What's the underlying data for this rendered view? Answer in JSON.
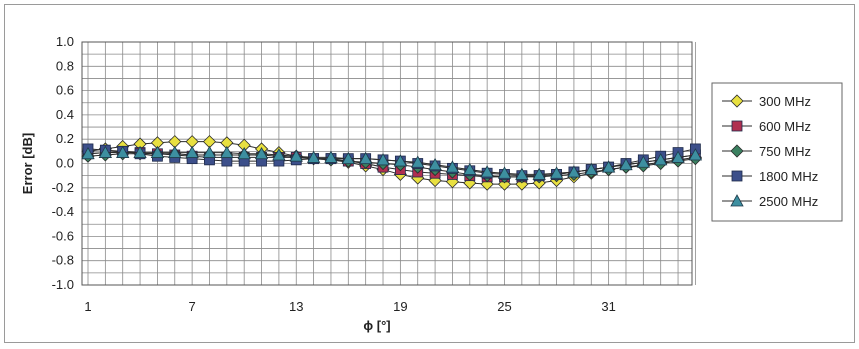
{
  "chart_data": {
    "type": "line",
    "xlabel": "ϕ [°]",
    "ylabel": "Error [dB]",
    "xlim": [
      1,
      36
    ],
    "ylim": [
      -1.0,
      1.0
    ],
    "x_ticks": [
      "1",
      "7",
      "13",
      "19",
      "25",
      "31"
    ],
    "y_ticks": [
      "1.0",
      "0.8",
      "0.6",
      "0.4",
      "0.2",
      "0.0",
      "-0.2",
      "-0.4",
      "-0.6",
      "-0.8",
      "-1.0"
    ],
    "grid": true,
    "legend_position": "right",
    "x": [
      1,
      2,
      3,
      4,
      5,
      6,
      7,
      8,
      9,
      10,
      11,
      12,
      13,
      14,
      15,
      16,
      17,
      18,
      19,
      20,
      21,
      22,
      23,
      24,
      25,
      26,
      27,
      28,
      29,
      30,
      31,
      32,
      33,
      34,
      35,
      36
    ],
    "series": [
      {
        "name": "300 MHz",
        "color": "#e8e040",
        "marker": "diamond",
        "values": [
          0.1,
          0.12,
          0.14,
          0.16,
          0.17,
          0.18,
          0.18,
          0.18,
          0.17,
          0.15,
          0.12,
          0.09,
          0.06,
          0.04,
          0.03,
          0.01,
          -0.02,
          -0.05,
          -0.09,
          -0.12,
          -0.14,
          -0.15,
          -0.16,
          -0.17,
          -0.17,
          -0.17,
          -0.16,
          -0.14,
          -0.11,
          -0.08,
          -0.05,
          -0.03,
          -0.01,
          0.01,
          0.03,
          0.05
        ]
      },
      {
        "name": "600 MHz",
        "color": "#b03050",
        "marker": "square",
        "values": [
          0.08,
          0.09,
          0.1,
          0.09,
          0.08,
          0.07,
          0.06,
          0.05,
          0.05,
          0.05,
          0.05,
          0.05,
          0.05,
          0.04,
          0.04,
          0.02,
          0.0,
          -0.03,
          -0.05,
          -0.07,
          -0.08,
          -0.09,
          -0.1,
          -0.11,
          -0.11,
          -0.11,
          -0.1,
          -0.09,
          -0.07,
          -0.05,
          -0.03,
          -0.01,
          0.01,
          0.03,
          0.05,
          0.07
        ]
      },
      {
        "name": "750 MHz",
        "color": "#3a8060",
        "marker": "diamond",
        "values": [
          0.06,
          0.07,
          0.08,
          0.08,
          0.08,
          0.08,
          0.07,
          0.07,
          0.07,
          0.07,
          0.07,
          0.06,
          0.05,
          0.04,
          0.03,
          0.02,
          0.01,
          0.0,
          -0.01,
          -0.03,
          -0.05,
          -0.07,
          -0.09,
          -0.1,
          -0.11,
          -0.11,
          -0.11,
          -0.1,
          -0.09,
          -0.07,
          -0.05,
          -0.03,
          -0.02,
          0.0,
          0.02,
          0.04
        ]
      },
      {
        "name": "1800 MHz",
        "color": "#3c4f8a",
        "marker": "square",
        "values": [
          0.12,
          0.11,
          0.1,
          0.08,
          0.06,
          0.05,
          0.04,
          0.03,
          0.02,
          0.02,
          0.02,
          0.02,
          0.03,
          0.04,
          0.04,
          0.04,
          0.04,
          0.03,
          0.02,
          0.0,
          -0.02,
          -0.04,
          -0.06,
          -0.08,
          -0.09,
          -0.1,
          -0.1,
          -0.09,
          -0.07,
          -0.05,
          -0.03,
          0.0,
          0.03,
          0.06,
          0.09,
          0.12
        ]
      },
      {
        "name": "2500 MHz",
        "color": "#3d8fa0",
        "marker": "triangle",
        "values": [
          0.08,
          0.09,
          0.09,
          0.09,
          0.09,
          0.09,
          0.09,
          0.09,
          0.09,
          0.08,
          0.08,
          0.07,
          0.06,
          0.05,
          0.05,
          0.04,
          0.04,
          0.03,
          0.02,
          0.01,
          -0.01,
          -0.03,
          -0.05,
          -0.07,
          -0.08,
          -0.09,
          -0.09,
          -0.08,
          -0.07,
          -0.05,
          -0.03,
          -0.01,
          0.01,
          0.03,
          0.05,
          0.07
        ]
      }
    ]
  }
}
